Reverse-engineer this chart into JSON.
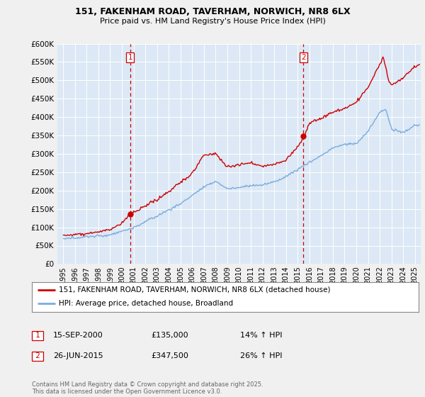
{
  "title_line1": "151, FAKENHAM ROAD, TAVERHAM, NORWICH, NR8 6LX",
  "title_line2": "Price paid vs. HM Land Registry's House Price Index (HPI)",
  "ylim": [
    0,
    600000
  ],
  "yticks": [
    0,
    50000,
    100000,
    150000,
    200000,
    250000,
    300000,
    350000,
    400000,
    450000,
    500000,
    550000,
    600000
  ],
  "xlim_start": 1994.5,
  "xlim_end": 2025.5,
  "background_color": "#f0f0f0",
  "plot_bg_color": "#dce8f5",
  "grid_color": "#ffffff",
  "sale1_x": 2000.71,
  "sale1_y": 135000,
  "sale2_x": 2015.48,
  "sale2_y": 347500,
  "property_color": "#cc0000",
  "hpi_color": "#7aacdc",
  "legend_property_label": "151, FAKENHAM ROAD, TAVERHAM, NORWICH, NR8 6LX (detached house)",
  "legend_hpi_label": "HPI: Average price, detached house, Broadland",
  "sale1_date": "15-SEP-2000",
  "sale1_price": "£135,000",
  "sale1_pct": "14% ↑ HPI",
  "sale2_date": "26-JUN-2015",
  "sale2_price": "£347,500",
  "sale2_pct": "26% ↑ HPI",
  "footer": "Contains HM Land Registry data © Crown copyright and database right 2025.\nThis data is licensed under the Open Government Licence v3.0.",
  "xtick_years": [
    1995,
    1996,
    1997,
    1998,
    1999,
    2000,
    2001,
    2002,
    2003,
    2004,
    2005,
    2006,
    2007,
    2008,
    2009,
    2010,
    2011,
    2012,
    2013,
    2014,
    2015,
    2016,
    2017,
    2018,
    2019,
    2020,
    2021,
    2022,
    2023,
    2024,
    2025
  ]
}
